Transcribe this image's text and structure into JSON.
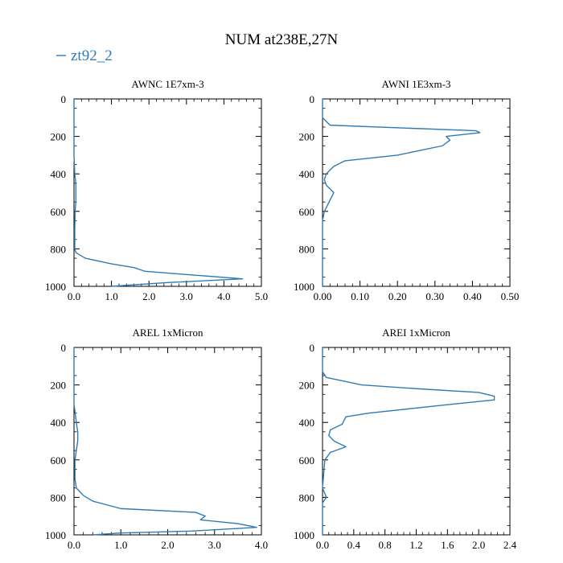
{
  "title": "NUM at238E,27N",
  "legend": {
    "label": "zt92_2",
    "color": "#2f7bb5"
  },
  "series_color": "#2f7bb5",
  "chart_data": [
    {
      "type": "line",
      "title": "AWNC  1E7xm-3",
      "series_name": "zt92_2",
      "xlim": [
        0,
        5.0
      ],
      "ylim": [
        1000,
        0
      ],
      "xticks": [
        0,
        1,
        2,
        3,
        4,
        5
      ],
      "xtick_labels": [
        "0.0",
        "1.0",
        "2.0",
        "3.0",
        "4.0",
        "5.0"
      ],
      "yticks": [
        0,
        200,
        400,
        600,
        800,
        1000
      ],
      "ytick_labels": [
        "0",
        "200",
        "400",
        "600",
        "800",
        "1000"
      ],
      "x": [
        0,
        0,
        0.02,
        0.05,
        0.05,
        0.05,
        0.03,
        0.02,
        0.02,
        0.05,
        0.3,
        1.0,
        1.6,
        1.9,
        3.2,
        4.5,
        2.5,
        1.0
      ],
      "y": [
        0,
        300,
        400,
        450,
        500,
        550,
        600,
        700,
        800,
        820,
        850,
        880,
        900,
        920,
        940,
        960,
        980,
        1000
      ]
    },
    {
      "type": "line",
      "title": "AWNI  1E3xm-3",
      "series_name": "zt92_2",
      "xlim": [
        0,
        0.5
      ],
      "ylim": [
        1000,
        0
      ],
      "xticks": [
        0,
        0.1,
        0.2,
        0.3,
        0.4,
        0.5
      ],
      "xtick_labels": [
        "0.00",
        "0.10",
        "0.20",
        "0.30",
        "0.40",
        "0.50"
      ],
      "yticks": [
        0,
        200,
        400,
        600,
        800,
        1000
      ],
      "ytick_labels": [
        "0",
        "200",
        "400",
        "600",
        "800",
        "1000"
      ],
      "x": [
        0,
        0,
        0.02,
        0.41,
        0.42,
        0.33,
        0.34,
        0.32,
        0.2,
        0.06,
        0.03,
        0.01,
        0.005,
        0.01,
        0.03,
        0.02,
        0.01,
        0.005,
        0,
        0
      ],
      "y": [
        0,
        100,
        140,
        170,
        180,
        200,
        220,
        250,
        300,
        330,
        360,
        400,
        430,
        460,
        500,
        540,
        580,
        600,
        650,
        1000
      ]
    },
    {
      "type": "line",
      "title": "AREL  1xMicron",
      "series_name": "zt92_2",
      "xlim": [
        0,
        4.0
      ],
      "ylim": [
        1000,
        0
      ],
      "xticks": [
        0,
        1,
        2,
        3,
        4
      ],
      "xtick_labels": [
        "0.0",
        "1.0",
        "2.0",
        "3.0",
        "4.0"
      ],
      "yticks": [
        0,
        200,
        400,
        600,
        800,
        1000
      ],
      "ytick_labels": [
        "0",
        "200",
        "400",
        "600",
        "800",
        "1000"
      ],
      "x": [
        0,
        0,
        0.05,
        0.08,
        0.08,
        0.05,
        0.02,
        0.02,
        0.05,
        0.2,
        0.4,
        1.0,
        2.6,
        2.8,
        2.7,
        3.5,
        3.9,
        2.5,
        1.0,
        0.4
      ],
      "y": [
        0,
        300,
        400,
        450,
        500,
        550,
        600,
        700,
        750,
        790,
        820,
        860,
        880,
        900,
        920,
        940,
        960,
        980,
        990,
        1000
      ]
    },
    {
      "type": "line",
      "title": "AREI  1xMicron",
      "series_name": "zt92_2",
      "xlim": [
        0,
        2.4
      ],
      "ylim": [
        1000,
        0
      ],
      "xticks": [
        0,
        0.4,
        0.8,
        1.2,
        1.6,
        2.0,
        2.4
      ],
      "xtick_labels": [
        "0.0",
        "0.4",
        "0.8",
        "1.2",
        "1.6",
        "2.0",
        "2.4"
      ],
      "yticks": [
        0,
        200,
        400,
        600,
        800,
        1000
      ],
      "ytick_labels": [
        "0",
        "200",
        "400",
        "600",
        "800",
        "1000"
      ],
      "x": [
        0,
        0,
        0.05,
        0.5,
        1.2,
        2.0,
        2.2,
        2.2,
        1.5,
        0.6,
        0.3,
        0.25,
        0.1,
        0.08,
        0.15,
        0.3,
        0.1,
        0.03,
        0,
        0.05,
        0,
        0
      ],
      "y": [
        0,
        130,
        160,
        200,
        220,
        240,
        260,
        280,
        310,
        350,
        370,
        410,
        440,
        470,
        500,
        530,
        560,
        600,
        750,
        800,
        830,
        1000
      ]
    }
  ]
}
